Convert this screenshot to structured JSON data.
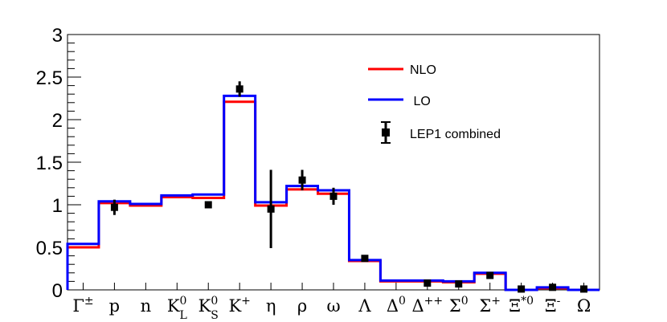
{
  "chart_data": {
    "type": "bar",
    "title": "",
    "xlabel": "",
    "ylabel": "",
    "ylim": [
      0,
      3
    ],
    "y_ticks": [
      "0",
      "0.5",
      "1",
      "1.5",
      "2",
      "2.5",
      "3"
    ],
    "y_tick_values": [
      0,
      0.5,
      1,
      1.5,
      2,
      2.5,
      3
    ],
    "categories": [
      "Γ±",
      "p",
      "n",
      "K_L^0",
      "K_S^0",
      "K+",
      "η",
      "ρ",
      "ω",
      "Λ",
      "Δ0",
      "Δ++",
      "Σ0",
      "Σ+",
      "Ξ*0",
      "Ξ-",
      "Ω"
    ],
    "category_display": [
      {
        "base": "Γ",
        "sup": "±",
        "sub": ""
      },
      {
        "base": "p",
        "sup": "",
        "sub": ""
      },
      {
        "base": "n",
        "sup": "",
        "sub": ""
      },
      {
        "base": "K",
        "sup": "0",
        "sub": "L"
      },
      {
        "base": "K",
        "sup": "0",
        "sub": "S"
      },
      {
        "base": "K",
        "sup": "+",
        "sub": ""
      },
      {
        "base": "η",
        "sup": "",
        "sub": ""
      },
      {
        "base": "ρ",
        "sup": "",
        "sub": ""
      },
      {
        "base": "ω",
        "sup": "",
        "sub": ""
      },
      {
        "base": "Λ",
        "sup": "",
        "sub": ""
      },
      {
        "base": "Δ",
        "sup": "0",
        "sub": ""
      },
      {
        "base": "Δ",
        "sup": "++",
        "sub": ""
      },
      {
        "base": "Σ",
        "sup": "0",
        "sub": ""
      },
      {
        "base": "Σ",
        "sup": "+",
        "sub": ""
      },
      {
        "base": "Ξ",
        "sup": "*0",
        "sub": ""
      },
      {
        "base": "Ξ",
        "sup": "-",
        "sub": ""
      },
      {
        "base": "Ω",
        "sup": "",
        "sub": ""
      }
    ],
    "series": [
      {
        "name": "NLO",
        "style": "step",
        "color": "#ff0000",
        "values": [
          0.5,
          1.02,
          0.99,
          1.09,
          1.08,
          2.21,
          0.99,
          1.18,
          1.13,
          0.34,
          0.1,
          0.1,
          0.09,
          0.19,
          0.0,
          0.02,
          0.0
        ]
      },
      {
        "name": "LO",
        "style": "step",
        "color": "#0000ff",
        "values": [
          0.54,
          1.04,
          1.01,
          1.11,
          1.12,
          2.28,
          1.03,
          1.22,
          1.17,
          0.35,
          0.11,
          0.11,
          0.1,
          0.2,
          0.0,
          0.03,
          0.0
        ]
      },
      {
        "name": "LEP1 combined",
        "style": "points",
        "color": "#000000",
        "values": [
          null,
          0.97,
          null,
          null,
          1.0,
          2.36,
          0.95,
          1.29,
          1.1,
          0.37,
          null,
          0.08,
          0.07,
          0.17,
          0.01,
          0.03,
          0.01
        ],
        "errors": [
          null,
          0.09,
          null,
          null,
          0.02,
          0.09,
          0.46,
          0.12,
          0.1,
          0.02,
          null,
          0.01,
          0.01,
          0.02,
          0.01,
          0.01,
          0.01
        ]
      }
    ],
    "legend": {
      "placement": "top-right",
      "entries": [
        "NLO",
        " LO",
        "LEP1 combined"
      ]
    }
  }
}
